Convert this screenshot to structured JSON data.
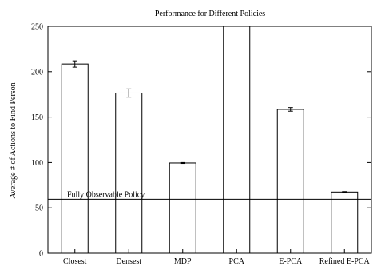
{
  "chart_data": {
    "type": "bar",
    "title": "Performance for Different Policies",
    "xlabel": "",
    "ylabel": "Average # of Actions to Find Person",
    "categories": [
      "Closest",
      "Densest",
      "MDP",
      "PCA",
      "E-PCA",
      "Refined E-PCA"
    ],
    "values": [
      208.5,
      176.5,
      99.5,
      250,
      158.5,
      67.5
    ],
    "errors": [
      3.5,
      4.5,
      0.5,
      0,
      2,
      0.5
    ],
    "ylim": [
      0,
      250
    ],
    "yticks": [
      0,
      50,
      100,
      150,
      200,
      250
    ],
    "reference_line": {
      "label": "Fully Observable Policy",
      "value": 59.5
    },
    "grid": false,
    "legend": "none"
  }
}
